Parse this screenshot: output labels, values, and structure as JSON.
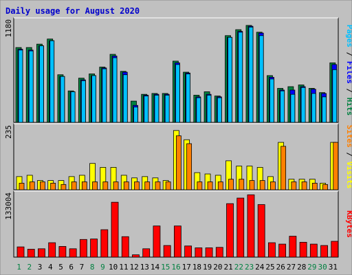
{
  "chart_data": {
    "type": "bar",
    "title": "Daily usage for August 2020",
    "days": [
      "1",
      "2",
      "3",
      "4",
      "5",
      "6",
      "7",
      "8",
      "9",
      "10",
      "11",
      "12",
      "13",
      "14",
      "15",
      "16",
      "17",
      "18",
      "19",
      "20",
      "21",
      "22",
      "23",
      "24",
      "25",
      "26",
      "27",
      "28",
      "29",
      "30",
      "31"
    ],
    "weekend_days": [
      "1",
      "2",
      "8",
      "9",
      "15",
      "16",
      "22",
      "23",
      "29",
      "30"
    ],
    "colors": {
      "background": "#c0c0c0",
      "panel": "#c0c0c0",
      "hits": "#008040",
      "files": "#0000ff",
      "pages": "#00c0ff",
      "visits": "#ffff00",
      "sites": "#ff8000",
      "kbytes": "#ff0000",
      "title": "#0000cc",
      "weekday_label": "#000000",
      "weekend_label": "#008040"
    },
    "panels": [
      {
        "name": "top",
        "max_label": "1180",
        "ylim": [
          0,
          1180
        ],
        "legend": [
          "Pages",
          "Files",
          "Hits"
        ],
        "series": [
          {
            "name": "Hits",
            "values": [
              880,
              880,
              920,
              980,
              560,
              370,
              520,
              570,
              650,
              800,
              600,
              250,
              330,
              340,
              340,
              720,
              590,
              320,
              360,
              310,
              1020,
              1090,
              1140,
              1060,
              550,
              400,
              420,
              440,
              400,
              350,
              700
            ]
          },
          {
            "name": "Files",
            "values": [
              860,
              850,
              900,
              960,
              540,
              360,
              500,
              550,
              640,
              780,
              590,
              200,
              320,
              330,
              330,
              700,
              580,
              300,
              330,
              300,
              1000,
              1070,
              1130,
              1050,
              530,
              380,
              380,
              420,
              390,
              340,
              680
            ]
          },
          {
            "name": "Pages",
            "values": [
              850,
              840,
              900,
              960,
              540,
              360,
              490,
              550,
              630,
              760,
              560,
              180,
              310,
              320,
              320,
              680,
              570,
              290,
              320,
              290,
              1000,
              1060,
              1120,
              1020,
              510,
              370,
              330,
              410,
              340,
              300,
              620
            ]
          }
        ]
      },
      {
        "name": "middle",
        "max_label": "235",
        "ylim": [
          0,
          235
        ],
        "legend": [
          "Sites",
          "Visits"
        ],
        "series": [
          {
            "name": "Visits",
            "values": [
              50,
              55,
              35,
              35,
              35,
              50,
              55,
              100,
              85,
              85,
              55,
              45,
              50,
              45,
              35,
              225,
              190,
              65,
              60,
              55,
              110,
              90,
              90,
              85,
              50,
              180,
              40,
              40,
              40,
              25,
              180
            ]
          },
          {
            "name": "Sites",
            "values": [
              25,
              30,
              30,
              25,
              20,
              30,
              30,
              30,
              30,
              30,
              30,
              30,
              30,
              30,
              30,
              205,
              175,
              30,
              30,
              30,
              40,
              40,
              35,
              35,
              30,
              165,
              30,
              30,
              25,
              20,
              180
            ]
          }
        ]
      },
      {
        "name": "bottom",
        "max_label": "133004",
        "ylim": [
          0,
          133004
        ],
        "legend": [
          "KBytes"
        ],
        "series": [
          {
            "name": "KBytes",
            "values": [
              22000,
              17000,
              18000,
              31000,
              23000,
              18000,
              38000,
              39000,
              59000,
              118000,
              44000,
              5000,
              18000,
              67000,
              25000,
              67000,
              24000,
              20000,
              20000,
              21000,
              115000,
              127000,
              134000,
              113000,
              31000,
              28000,
              45000,
              32000,
              28000,
              25000,
              34000
            ]
          }
        ]
      }
    ]
  }
}
